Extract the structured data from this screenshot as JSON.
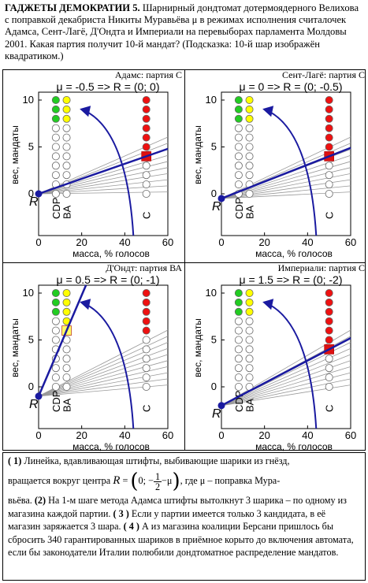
{
  "header": {
    "title": "ГАДЖЕТЫ ДЕМОКРАТИИ 5.",
    "text": " Шарнирный дондтомат дотермоядерного Велихова с поправкой декабриста Никиты Муравьёва μ в режимах исполнения считалочек Адамса, Сент-Лагё, Д'Ондта и Империали на перевыборах парламента Молдовы 2001. Какая партия получит 10-й мандат? (Подсказка: 10-й шар изображён квадратиком.)"
  },
  "panels": [
    {
      "title": "Адамс: партия С",
      "formula": "μ = -0.5 => R = (0; 0)",
      "mu": -0.5,
      "winner": "C",
      "winner_index": 9
    },
    {
      "title": "Сент-Лагё: партия С",
      "formula": "μ = 0 => R = (0; -0.5)",
      "mu": 0,
      "winner": "C",
      "winner_index": 9
    },
    {
      "title": "Д'Ондт: партия ВА",
      "formula": "μ = 0.5 => R = (0; -1)",
      "mu": 0.5,
      "winner": "BA",
      "winner_index": 7
    },
    {
      "title": "Империали: партия С",
      "formula": "μ = 1.5 => R = (0; -2)",
      "mu": 1.5,
      "winner": "C",
      "winner_index": 9
    }
  ],
  "axes": {
    "xlabel": "масса, % голосов",
    "ylabel": "вес, мандаты",
    "x_ticks": [
      "0",
      "20",
      "40",
      "60"
    ],
    "y_ticks": [
      "0",
      "5",
      "10"
    ],
    "xlim": [
      0,
      60
    ],
    "ylim": [
      0,
      10
    ],
    "pivot_label": "R"
  },
  "chart_data": {
    "type": "scatter",
    "parties": [
      {
        "name": "CDP",
        "vote_share": 8,
        "color": "#22cc22"
      },
      {
        "name": "BA",
        "vote_share": 13,
        "color": "#ffff00"
      },
      {
        "name": "C",
        "vote_share": 50,
        "color": "#ee1111"
      }
    ],
    "balls_per_party": 11,
    "filled_balls": [
      [
        {
          "CDP": 3,
          "BA": 3,
          "C": 6
        }
      ],
      [
        {
          "CDP": 3,
          "BA": 3,
          "C": 6
        }
      ],
      [
        {
          "CDP": 3,
          "BA": 4,
          "C": 5
        }
      ],
      [
        {
          "CDP": 3,
          "BA": 3,
          "C": 6
        }
      ]
    ]
  },
  "footer": {
    "p1_num": "( 1)",
    "p1_text": " Линейка, вдавливающая штифты, выбивающие шарики из гнёзд,",
    "p1_text2": "вращается вокруг центра ",
    "R": "R",
    "eq": " = ",
    "zero": "0;",
    "minus": "−",
    "frac_num": "1",
    "frac_den": "2",
    "mu": "−μ",
    "p1_text3": ", где μ – поправка Мура-",
    "p2": "вьёва. ",
    "p2_num": "(2)",
    "p2_text": " На 1-м шаге метода Адамса штифты вытолкнут 3 шарика – по одному из магазина каждой партии. ",
    "p3_num": "( 3 )",
    "p3_text": " Если у партии имеется только 3 кандидата, в её магазин заряжается 3 шара. ",
    "p4_num": "( 4 )",
    "p4_text": " А из магазина коалиции Берсани пришлось бы сбросить 340  гарантированных шариков в приёмное корыто до включения автомата, если бы законодатели Италии полюбили дондтоматное распределение мандатов."
  }
}
